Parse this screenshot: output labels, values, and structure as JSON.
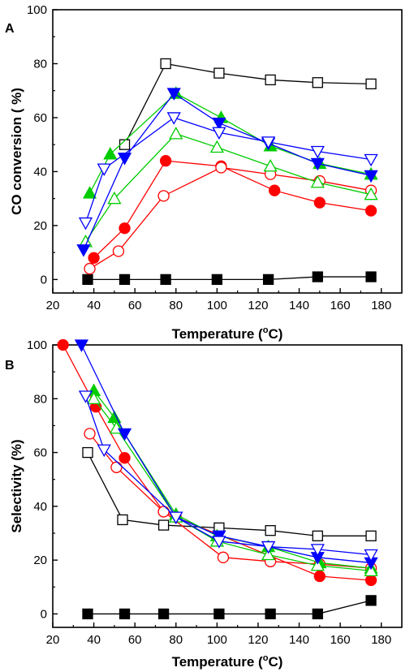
{
  "chart_data": [
    {
      "panel": "A",
      "type": "line",
      "xlabel": "Temperature (°C)",
      "xlabel_parts": [
        "Temperature (",
        "o",
        "C)"
      ],
      "ylabel": "CO conversion ( %)",
      "xlim": [
        20,
        190
      ],
      "ylim": [
        -5,
        100
      ],
      "xticks": [
        20,
        40,
        60,
        80,
        100,
        120,
        140,
        160,
        180
      ],
      "yticks": [
        0,
        20,
        40,
        60,
        80,
        100
      ],
      "grid": false,
      "series": [
        {
          "color": "#000000",
          "marker": "square-filled",
          "points": [
            [
              37,
              0
            ],
            [
              55,
              0
            ],
            [
              75,
              0
            ],
            [
              100,
              0
            ],
            [
              125,
              0
            ],
            [
              149,
              1
            ],
            [
              175,
              1
            ]
          ]
        },
        {
          "color": "#000000",
          "marker": "square-open",
          "points": [
            [
              55,
              50
            ],
            [
              75,
              80
            ],
            [
              101,
              76.5
            ],
            [
              126,
              74
            ],
            [
              149,
              73
            ],
            [
              175,
              72.5
            ]
          ]
        },
        {
          "color": "#ff0000",
          "marker": "circle-filled",
          "points": [
            [
              40,
              8
            ],
            [
              55,
              19
            ],
            [
              75,
              44
            ],
            [
              102,
              42
            ],
            [
              128,
              33
            ],
            [
              150,
              28.5
            ],
            [
              175,
              25.5
            ]
          ]
        },
        {
          "color": "#ff0000",
          "marker": "circle-open",
          "points": [
            [
              38,
              4
            ],
            [
              52,
              10.5
            ],
            [
              74,
              31
            ],
            [
              102,
              41.5
            ],
            [
              126,
              39
            ],
            [
              150,
              36.5
            ],
            [
              175,
              33
            ]
          ]
        },
        {
          "color": "#00cc00",
          "marker": "triangle-up-filled",
          "points": [
            [
              38,
              32
            ],
            [
              48,
              46.5
            ],
            [
              80,
              69
            ],
            [
              102,
              60
            ],
            [
              126,
              49.5
            ],
            [
              150,
              43
            ],
            [
              175,
              39
            ]
          ]
        },
        {
          "color": "#00cc00",
          "marker": "triangle-up-open",
          "points": [
            [
              36,
              14
            ],
            [
              50,
              30
            ],
            [
              80,
              54
            ],
            [
              100,
              49
            ],
            [
              126,
              42
            ],
            [
              149,
              36
            ],
            [
              175,
              31.5
            ]
          ]
        },
        {
          "color": "#0000ff",
          "marker": "triangle-down-filled",
          "points": [
            [
              35,
              11
            ],
            [
              55,
              45
            ],
            [
              79,
              69
            ],
            [
              101,
              58
            ],
            [
              125,
              50.5
            ],
            [
              149,
              43
            ],
            [
              175,
              38.5
            ]
          ]
        },
        {
          "color": "#0000ff",
          "marker": "triangle-down-open",
          "points": [
            [
              36,
              21
            ],
            [
              45,
              41
            ],
            [
              79,
              60
            ],
            [
              101,
              54.5
            ],
            [
              125,
              51
            ],
            [
              149,
              47.5
            ],
            [
              175,
              44.5
            ]
          ]
        }
      ]
    },
    {
      "panel": "B",
      "type": "line",
      "xlabel": "Temperature (°C)",
      "xlabel_parts": [
        "Temperature (",
        "o",
        "C)"
      ],
      "ylabel": "Selectivity (%)",
      "xlim": [
        20,
        190
      ],
      "ylim": [
        -5,
        100
      ],
      "xticks": [
        20,
        40,
        60,
        80,
        100,
        120,
        140,
        160,
        180
      ],
      "yticks": [
        0,
        20,
        40,
        60,
        80,
        100
      ],
      "grid": false,
      "series": [
        {
          "color": "#000000",
          "marker": "square-filled",
          "points": [
            [
              37,
              0
            ],
            [
              55,
              0
            ],
            [
              74,
              0
            ],
            [
              101,
              0
            ],
            [
              126,
              0
            ],
            [
              149,
              0
            ],
            [
              175,
              5
            ]
          ]
        },
        {
          "color": "#000000",
          "marker": "square-open",
          "points": [
            [
              37,
              60
            ],
            [
              54,
              35
            ],
            [
              74,
              33
            ],
            [
              101,
              32
            ],
            [
              126,
              31
            ],
            [
              149,
              29
            ],
            [
              175,
              29
            ]
          ]
        },
        {
          "color": "#ff0000",
          "marker": "circle-filled",
          "points": [
            [
              25,
              100
            ],
            [
              41,
              77
            ],
            [
              55,
              58
            ],
            [
              74,
              38
            ],
            [
              80,
              36
            ],
            [
              150,
              14
            ],
            [
              175,
              12.5
            ]
          ]
        },
        {
          "color": "#ff0000",
          "marker": "circle-open",
          "points": [
            [
              38,
              67
            ],
            [
              51,
              54.5
            ],
            [
              74,
              38
            ],
            [
              103,
              21
            ],
            [
              126,
              19.5
            ],
            [
              150,
              18.5
            ],
            [
              175,
              17
            ]
          ]
        },
        {
          "color": "#00cc00",
          "marker": "triangle-up-filled",
          "points": [
            [
              40,
              83
            ],
            [
              50,
              73
            ],
            [
              80,
              37
            ],
            [
              100,
              29
            ],
            [
              125,
              25
            ],
            [
              150,
              19
            ],
            [
              175,
              17
            ]
          ]
        },
        {
          "color": "#00cc00",
          "marker": "triangle-up-open",
          "points": [
            [
              40,
              80
            ],
            [
              51,
              69
            ],
            [
              80,
              36
            ],
            [
              100,
              27
            ],
            [
              125,
              22
            ],
            [
              149,
              18
            ],
            [
              175,
              16
            ]
          ]
        },
        {
          "color": "#0000ff",
          "marker": "triangle-down-filled",
          "points": [
            [
              34,
              100
            ],
            [
              55,
              67
            ],
            [
              80,
              36
            ],
            [
              101,
              29
            ],
            [
              125,
              25
            ],
            [
              149,
              21
            ],
            [
              175,
              19
            ]
          ]
        },
        {
          "color": "#0000ff",
          "marker": "triangle-down-open",
          "points": [
            [
              36,
              81
            ],
            [
              45,
              61
            ],
            [
              80,
              36
            ],
            [
              101,
              27
            ],
            [
              125,
              25
            ],
            [
              149,
              24
            ],
            [
              175,
              22
            ]
          ]
        }
      ]
    }
  ]
}
